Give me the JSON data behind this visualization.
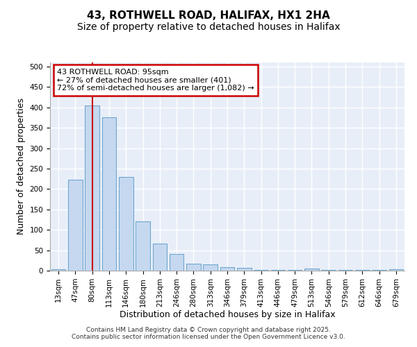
{
  "title1": "43, ROTHWELL ROAD, HALIFAX, HX1 2HA",
  "title2": "Size of property relative to detached houses in Halifax",
  "xlabel": "Distribution of detached houses by size in Halifax",
  "ylabel": "Number of detached properties",
  "categories": [
    "13sqm",
    "47sqm",
    "80sqm",
    "113sqm",
    "146sqm",
    "180sqm",
    "213sqm",
    "246sqm",
    "280sqm",
    "313sqm",
    "346sqm",
    "379sqm",
    "413sqm",
    "446sqm",
    "479sqm",
    "513sqm",
    "546sqm",
    "579sqm",
    "612sqm",
    "646sqm",
    "679sqm"
  ],
  "values": [
    3,
    222,
    405,
    375,
    230,
    120,
    67,
    40,
    17,
    15,
    8,
    7,
    1,
    1,
    1,
    5,
    1,
    1,
    1,
    2,
    3
  ],
  "bar_color": "#c5d8ef",
  "bar_edge_color": "#6ea6d0",
  "vline_x": 2,
  "vline_color": "#cc0000",
  "annotation_text": "43 ROTHWELL ROAD: 95sqm\n← 27% of detached houses are smaller (401)\n72% of semi-detached houses are larger (1,082) →",
  "annotation_box_color": "#ffffff",
  "annotation_border_color": "#cc0000",
  "ylim": [
    0,
    510
  ],
  "yticks": [
    0,
    50,
    100,
    150,
    200,
    250,
    300,
    350,
    400,
    450,
    500
  ],
  "background_color": "#e8eef8",
  "footer1": "Contains HM Land Registry data © Crown copyright and database right 2025.",
  "footer2": "Contains public sector information licensed under the Open Government Licence v3.0.",
  "title_fontsize": 11,
  "subtitle_fontsize": 10,
  "tick_fontsize": 7.5,
  "label_fontsize": 9,
  "annotation_fontsize": 8
}
